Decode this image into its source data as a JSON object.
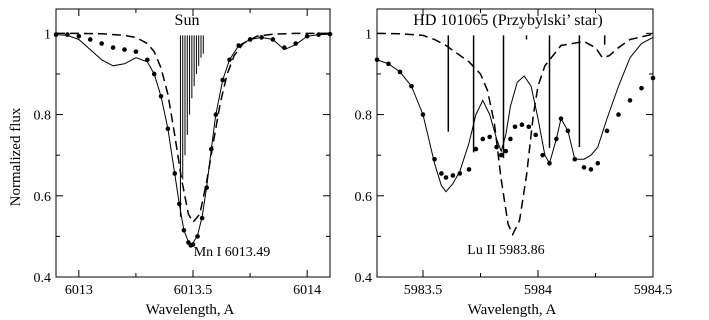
{
  "ylabel": "Normalized flux",
  "chart_data": [
    {
      "type": "line",
      "title": "Sun",
      "xlabel": "Wavelength, A",
      "ylabel": "Normalized flux",
      "annotation": "Mn I 6013.49",
      "xlim": [
        6012.9,
        6014.1
      ],
      "ylim": [
        0.4,
        1.06
      ],
      "xticks": [
        6013,
        6013.5,
        6014
      ],
      "xtick_labels": [
        "6013",
        "6013.5",
        "6014"
      ],
      "yticks": [
        0.4,
        0.6,
        0.8,
        1.0
      ],
      "ytick_labels": [
        "0.4",
        "0.6",
        "0.8",
        "1"
      ],
      "grid": false,
      "series": [
        {
          "style": "dots",
          "x": [
            6012.9,
            6012.95,
            6013.0,
            6013.05,
            6013.1,
            6013.15,
            6013.2,
            6013.25,
            6013.3,
            6013.33,
            6013.36,
            6013.39,
            6013.42,
            6013.44,
            6013.46,
            6013.48,
            6013.49,
            6013.5,
            6013.52,
            6013.54,
            6013.56,
            6013.58,
            6013.6,
            6013.63,
            6013.66,
            6013.7,
            6013.75,
            6013.8,
            6013.85,
            6013.9,
            6013.95,
            6014.0,
            6014.05,
            6014.1
          ],
          "y": [
            0.997,
            0.997,
            0.993,
            0.985,
            0.975,
            0.965,
            0.96,
            0.955,
            0.935,
            0.9,
            0.845,
            0.765,
            0.655,
            0.58,
            0.515,
            0.485,
            0.478,
            0.48,
            0.5,
            0.545,
            0.62,
            0.715,
            0.8,
            0.885,
            0.935,
            0.97,
            0.985,
            0.99,
            0.985,
            0.965,
            0.975,
            0.993,
            0.997,
            0.998
          ]
        },
        {
          "style": "solid",
          "x": [
            6012.9,
            6012.95,
            6013.0,
            6013.05,
            6013.1,
            6013.15,
            6013.2,
            6013.25,
            6013.3,
            6013.33,
            6013.36,
            6013.39,
            6013.42,
            6013.44,
            6013.46,
            6013.48,
            6013.49,
            6013.5,
            6013.52,
            6013.54,
            6013.56,
            6013.58,
            6013.6,
            6013.63,
            6013.66,
            6013.7,
            6013.75,
            6013.8,
            6013.85,
            6013.9,
            6013.95,
            6014.0,
            6014.05,
            6014.1
          ],
          "y": [
            0.997,
            0.995,
            0.985,
            0.96,
            0.935,
            0.92,
            0.925,
            0.94,
            0.93,
            0.9,
            0.845,
            0.765,
            0.655,
            0.58,
            0.515,
            0.487,
            0.482,
            0.484,
            0.503,
            0.548,
            0.622,
            0.715,
            0.8,
            0.885,
            0.935,
            0.97,
            0.985,
            0.99,
            0.985,
            0.96,
            0.972,
            0.993,
            0.997,
            0.998
          ]
        },
        {
          "style": "dashed",
          "x": [
            6012.9,
            6013.0,
            6013.1,
            6013.2,
            6013.25,
            6013.3,
            6013.33,
            6013.36,
            6013.39,
            6013.42,
            6013.45,
            6013.48,
            6013.5,
            6013.53,
            6013.56,
            6013.59,
            6013.62,
            6013.65,
            6013.68,
            6013.72,
            6013.78,
            6013.85,
            6013.95,
            6014.1
          ],
          "y": [
            1.0,
            1.0,
            0.999,
            0.995,
            0.99,
            0.975,
            0.955,
            0.915,
            0.85,
            0.75,
            0.64,
            0.555,
            0.535,
            0.555,
            0.635,
            0.735,
            0.83,
            0.9,
            0.945,
            0.975,
            0.993,
            0.998,
            1.0,
            1.0
          ]
        }
      ],
      "hfs_lines": {
        "x": [
          6013.445,
          6013.455,
          6013.465,
          6013.475,
          6013.485,
          6013.495,
          6013.505,
          6013.515,
          6013.525,
          6013.535,
          6013.545
        ],
        "bottom": [
          0.548,
          0.64,
          0.7,
          0.75,
          0.8,
          0.84,
          0.87,
          0.9,
          0.92,
          0.94,
          0.95
        ],
        "top": 0.995
      }
    },
    {
      "type": "line",
      "title": "HD 101065 (Przybylski’ star)",
      "xlabel": "Wavelength, A",
      "annotation": "Lu II 5983.86",
      "xlim": [
        5983.3,
        5984.5
      ],
      "ylim": [
        0.4,
        1.06
      ],
      "xticks": [
        5983.5,
        5984,
        5984.5
      ],
      "xtick_labels": [
        "5983.5",
        "5984",
        "5984.5"
      ],
      "yticks": [
        0.4,
        0.6,
        0.8,
        1.0
      ],
      "ytick_labels": [
        "0.4",
        "0.6",
        "0.8",
        "1"
      ],
      "grid": false,
      "series": [
        {
          "style": "dots",
          "x": [
            5983.3,
            5983.35,
            5983.4,
            5983.45,
            5983.5,
            5983.55,
            5983.58,
            5983.6,
            5983.63,
            5983.66,
            5983.7,
            5983.73,
            5983.76,
            5983.79,
            5983.82,
            5983.84,
            5983.86,
            5983.88,
            5983.9,
            5983.93,
            5983.96,
            5983.99,
            5984.02,
            5984.05,
            5984.08,
            5984.1,
            5984.13,
            5984.16,
            5984.2,
            5984.23,
            5984.26,
            5984.3,
            5984.35,
            5984.4,
            5984.45,
            5984.5
          ],
          "y": [
            0.935,
            0.925,
            0.905,
            0.87,
            0.8,
            0.69,
            0.655,
            0.645,
            0.65,
            0.655,
            0.665,
            0.715,
            0.74,
            0.745,
            0.72,
            0.7,
            0.71,
            0.74,
            0.77,
            0.775,
            0.77,
            0.75,
            0.7,
            0.68,
            0.74,
            0.79,
            0.76,
            0.69,
            0.67,
            0.665,
            0.68,
            0.76,
            0.8,
            0.835,
            0.865,
            0.89
          ]
        },
        {
          "style": "solid",
          "x": [
            5983.3,
            5983.35,
            5983.4,
            5983.45,
            5983.5,
            5983.55,
            5983.58,
            5983.6,
            5983.63,
            5983.66,
            5983.7,
            5983.73,
            5983.76,
            5983.79,
            5983.82,
            5983.84,
            5983.86,
            5983.88,
            5983.91,
            5983.94,
            5983.97,
            5984.0,
            5984.03,
            5984.05,
            5984.08,
            5984.1,
            5984.13,
            5984.16,
            5984.2,
            5984.23,
            5984.26,
            5984.3,
            5984.35,
            5984.4,
            5984.45,
            5984.5
          ],
          "y": [
            0.935,
            0.925,
            0.905,
            0.87,
            0.8,
            0.68,
            0.625,
            0.61,
            0.63,
            0.66,
            0.73,
            0.8,
            0.835,
            0.8,
            0.74,
            0.71,
            0.75,
            0.82,
            0.88,
            0.895,
            0.87,
            0.79,
            0.7,
            0.68,
            0.74,
            0.79,
            0.76,
            0.69,
            0.69,
            0.7,
            0.72,
            0.79,
            0.87,
            0.94,
            0.975,
            0.99
          ]
        },
        {
          "style": "dashed",
          "x": [
            5983.3,
            5983.4,
            5983.5,
            5983.55,
            5983.6,
            5983.65,
            5983.7,
            5983.75,
            5983.78,
            5983.81,
            5983.84,
            5983.87,
            5983.89,
            5983.92,
            5983.95,
            5983.98,
            5984.0,
            5984.03,
            5984.1,
            5984.2,
            5984.25,
            5984.28,
            5984.31,
            5984.35,
            5984.4,
            5984.5
          ],
          "y": [
            1.0,
            0.999,
            0.995,
            0.985,
            0.97,
            0.95,
            0.93,
            0.9,
            0.86,
            0.78,
            0.64,
            0.53,
            0.505,
            0.54,
            0.65,
            0.8,
            0.87,
            0.92,
            0.97,
            0.98,
            0.965,
            0.94,
            0.945,
            0.965,
            0.985,
            0.998
          ]
        }
      ],
      "hfs_lines": {
        "x": [
          5983.61,
          5983.72,
          5983.85,
          5983.95,
          5984.05,
          5984.18,
          5984.29
        ],
        "bottom": [
          0.758,
          0.707,
          0.693,
          0.985,
          0.718,
          0.72,
          0.972
        ],
        "top": 0.995
      }
    }
  ]
}
